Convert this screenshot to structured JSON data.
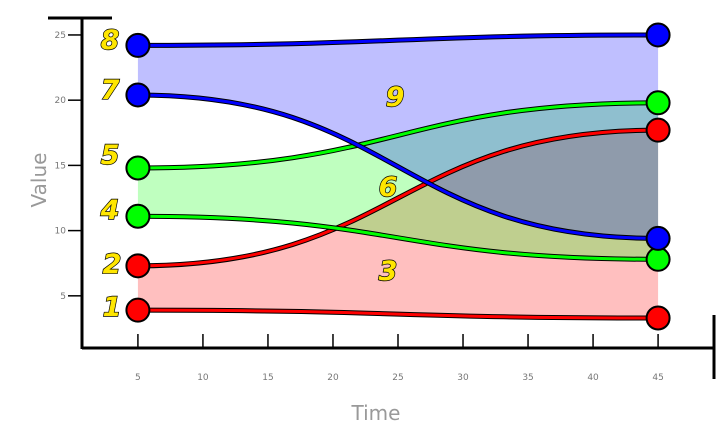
{
  "chart_data": {
    "type": "fill_between",
    "x": [
      5,
      45
    ],
    "bands": [
      {
        "color": "#ff0000",
        "lower": [
          3.9,
          3.3
        ],
        "upper": [
          7.3,
          17.7
        ]
      },
      {
        "color": "#00ff00",
        "lower": [
          11.1,
          7.8
        ],
        "upper": [
          14.8,
          19.8
        ]
      },
      {
        "color": "#0000ff",
        "lower": [
          20.4,
          9.4
        ],
        "upper": [
          24.2,
          25.0
        ]
      }
    ],
    "xlim": [
      0.7,
      49.3
    ],
    "ylim": [
      1,
      26.3
    ],
    "xticks": [
      5,
      10,
      15,
      20,
      25,
      30,
      35,
      40,
      45
    ],
    "yticks": [
      5,
      10,
      15,
      20,
      25
    ],
    "xlabel": "Time",
    "ylabel": "Value",
    "annotations": [
      "1",
      "2",
      "3",
      "4",
      "5",
      "6",
      "7",
      "8",
      "9"
    ]
  }
}
